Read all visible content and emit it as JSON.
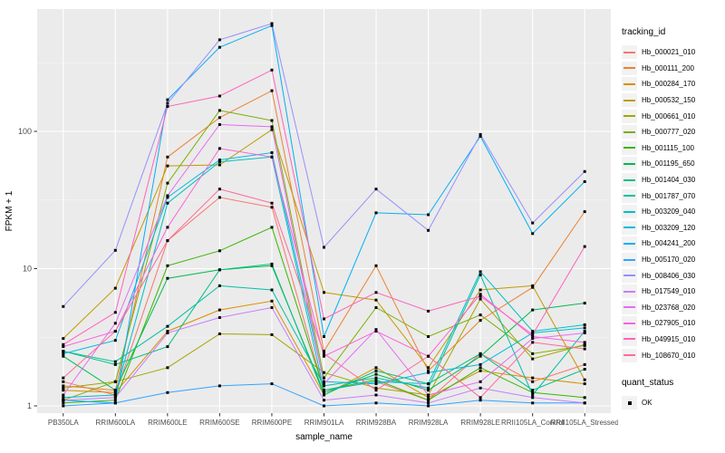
{
  "legend": {
    "tracking_title": "tracking_id",
    "quant_title": "quant_status",
    "quant_items": [
      {
        "label": "OK",
        "marker": "black-square"
      }
    ]
  },
  "colors": {
    "panel_bg": "#EBEBEB",
    "grid_major": "#FFFFFF",
    "grid_minor": "#F7F7F7",
    "tick_text": "#4D4D4D",
    "axis_title": "#000000",
    "point": "#000000",
    "legend_key_bg": "#F2F2F2"
  },
  "chart_data": {
    "type": "line",
    "title": "",
    "xlabel": "sample_name",
    "ylabel": "FPKM + 1",
    "y_scale": "log10",
    "ylim": [
      0.88,
      780
    ],
    "grid": true,
    "legend_position": "right",
    "marker": "black-point",
    "categories": [
      "PB350LA",
      "RRIM600LA",
      "RRIM600LE",
      "RRIM600SE",
      "RRIM600PE",
      "RRIM901LA",
      "RRIM928BA",
      "RRIM928LA",
      "RRIM928LE",
      "RRII105LA_Control",
      "RRII105LA_Stressed"
    ],
    "y_ticks": [
      {
        "label": "1",
        "value": 1
      },
      {
        "label": "10",
        "value": 10
      },
      {
        "label": "100",
        "value": 100
      }
    ],
    "y_minor": [
      3.162,
      31.62,
      316.2
    ],
    "series": [
      {
        "name": "Hb_000021_010",
        "color": "#F8766D",
        "values": [
          1.5,
          1.2,
          16,
          33,
          28,
          1.3,
          1.5,
          1.1,
          2.4,
          1.5,
          2.0
        ]
      },
      {
        "name": "Hb_000111_200",
        "color": "#EA8331",
        "values": [
          1.4,
          1.3,
          65,
          126,
          198,
          2.5,
          10.5,
          1.8,
          4.2,
          7.3,
          26
        ]
      },
      {
        "name": "Hb_000284_170",
        "color": "#D89000",
        "values": [
          1.3,
          1.25,
          3.5,
          5.0,
          5.8,
          1.2,
          1.9,
          1.15,
          1.8,
          1.6,
          1.45
        ]
      },
      {
        "name": "Hb_000532_150",
        "color": "#C09B00",
        "values": [
          3.1,
          7.2,
          56,
          57,
          103,
          6.7,
          5.9,
          1.9,
          7.0,
          7.5,
          1.55
        ]
      },
      {
        "name": "Hb_000661_010",
        "color": "#A3A500",
        "values": [
          1.35,
          1.5,
          1.9,
          3.35,
          3.3,
          1.75,
          1.35,
          1.2,
          6.0,
          2.2,
          2.8
        ]
      },
      {
        "name": "Hb_000777_020",
        "color": "#7CAE00",
        "values": [
          1.1,
          1.5,
          42,
          142,
          120,
          1.6,
          5.2,
          3.2,
          4.6,
          2.4,
          2.75
        ]
      },
      {
        "name": "Hb_001115_100",
        "color": "#39B600",
        "values": [
          1.05,
          1.1,
          10.5,
          13.5,
          20,
          1.3,
          1.55,
          1.1,
          1.9,
          1.25,
          1.15
        ]
      },
      {
        "name": "Hb_001195_650",
        "color": "#00BB4E",
        "values": [
          2.3,
          1.3,
          8.5,
          9.8,
          10.5,
          1.25,
          1.7,
          1.3,
          2.3,
          5.0,
          5.6
        ]
      },
      {
        "name": "Hb_001404_030",
        "color": "#00BF7D",
        "values": [
          2.5,
          2.0,
          2.7,
          9.8,
          10.8,
          1.2,
          1.8,
          1.45,
          2.4,
          1.3,
          1.85
        ]
      },
      {
        "name": "Hb_001787_070",
        "color": "#00C1A3",
        "values": [
          2.5,
          2.1,
          3.8,
          7.5,
          7.0,
          1.4,
          1.6,
          1.35,
          9.0,
          1.2,
          3.5
        ]
      },
      {
        "name": "Hb_003209_040",
        "color": "#00BFC4",
        "values": [
          1.15,
          1.2,
          30,
          60,
          65,
          1.3,
          1.5,
          1.45,
          9.5,
          3.5,
          3.9
        ]
      },
      {
        "name": "Hb_003209_120",
        "color": "#00BADE",
        "values": [
          2.4,
          3.0,
          33,
          62,
          70,
          1.5,
          1.45,
          1.75,
          2.0,
          3.4,
          3.7
        ]
      },
      {
        "name": "Hb_004241_200",
        "color": "#00B0F6",
        "values": [
          1.1,
          1.05,
          170,
          410,
          590,
          3.2,
          25.5,
          24.7,
          92,
          18,
          43
        ]
      },
      {
        "name": "Hb_005170_020",
        "color": "#35A2FF",
        "values": [
          1.0,
          1.05,
          1.25,
          1.4,
          1.45,
          1.0,
          1.05,
          1.0,
          1.1,
          1.05,
          1.05
        ]
      },
      {
        "name": "Hb_008406_030",
        "color": "#9590FF",
        "values": [
          5.3,
          13.6,
          160,
          465,
          610,
          14.3,
          38,
          19,
          95,
          21.5,
          51
        ]
      },
      {
        "name": "Hb_017549_010",
        "color": "#C77CFF",
        "values": [
          1.1,
          1.15,
          3.4,
          4.4,
          5.2,
          1.1,
          1.2,
          1.05,
          1.35,
          1.15,
          1.05
        ]
      },
      {
        "name": "Hb_023768_020",
        "color": "#E76BF3",
        "values": [
          1.2,
          4.0,
          34,
          112,
          108,
          1.45,
          3.6,
          1.2,
          1.5,
          3.1,
          3.4
        ]
      },
      {
        "name": "Hb_027905_010",
        "color": "#FA62DB",
        "values": [
          2.7,
          3.5,
          20,
          75,
          65,
          2.3,
          3.5,
          2.3,
          6.5,
          3.2,
          2.9
        ]
      },
      {
        "name": "Hb_049915_010",
        "color": "#FF62BC",
        "values": [
          2.8,
          4.8,
          152,
          181,
          280,
          4.3,
          6.7,
          4.9,
          6.3,
          3.3,
          14.5
        ]
      },
      {
        "name": "Hb_108670_010",
        "color": "#FF6A98",
        "values": [
          1.6,
          3.5,
          16,
          38,
          30,
          2.4,
          1.3,
          2.3,
          1.15,
          2.9,
          2.6
        ]
      }
    ]
  }
}
